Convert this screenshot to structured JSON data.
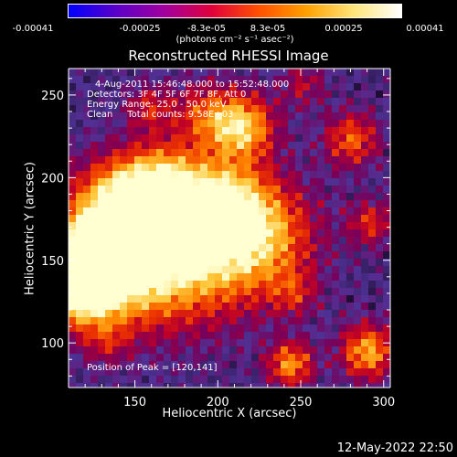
{
  "colorbar": {
    "tick_labels": [
      "-0.00041",
      "-0.00025",
      "-8.3e-05",
      "8.3e-05",
      "0.00025",
      "0.00041"
    ],
    "units": "(photons cm⁻² s⁻¹ asec⁻²)",
    "colors": [
      "#0000ff",
      "#5a00c8",
      "#a000a0",
      "#e0003c",
      "#ff5000",
      "#ffa000",
      "#ffe678",
      "#ffffff"
    ]
  },
  "title": "Reconstructed RHESSI Image",
  "info": {
    "line1": "4-Aug-2011 15:46:48.000 to 15:52:48.000",
    "line2": "Detectors: 3F 4F 5F 6F 7F 8F, Att 0",
    "line3": "Energy Range: 25.0 - 50.0 keV",
    "line4": "Clean     Total counts: 9.58E+03",
    "peak": "Position of Peak = [120,141]"
  },
  "chart_data": {
    "type": "heatmap",
    "title": "Reconstructed RHESSI Image",
    "xlabel": "Heliocentric X (arcsec)",
    "ylabel": "Heliocentric Y (arcsec)",
    "xlim": [
      110,
      304
    ],
    "ylim": [
      73,
      266
    ],
    "x_ticks": [
      150,
      200,
      250,
      300
    ],
    "y_ticks": [
      100,
      150,
      200,
      250
    ],
    "x_tick_labels": [
      "150",
      "200",
      "250",
      "300"
    ],
    "y_tick_labels": [
      "100",
      "150",
      "200",
      "250"
    ],
    "colorbar_range": [
      -0.00041,
      0.00041
    ],
    "peak_position": [
      120,
      141
    ]
  },
  "timestamp": "12-May-2022 22:50"
}
